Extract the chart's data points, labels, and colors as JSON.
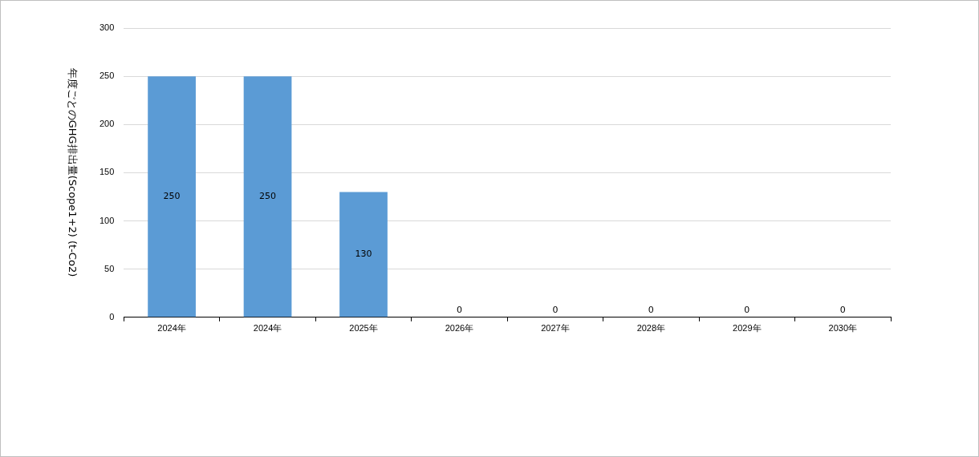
{
  "chart_data": {
    "type": "bar",
    "ylabel": "年度ごとのGHG排出量(Scope1+2) (t-Co2)",
    "categories": [
      "2024年",
      "2024年",
      "2025年",
      "2026年",
      "2027年",
      "2028年",
      "2029年",
      "2030年"
    ],
    "values": [
      250,
      250,
      130,
      0,
      0,
      0,
      0,
      0
    ],
    "color": "#5b9bd5",
    "ylim": [
      0,
      300
    ],
    "yticks": [
      0,
      50,
      100,
      150,
      200,
      250,
      300
    ],
    "grid": "y",
    "data_labels": true,
    "legend": false
  }
}
